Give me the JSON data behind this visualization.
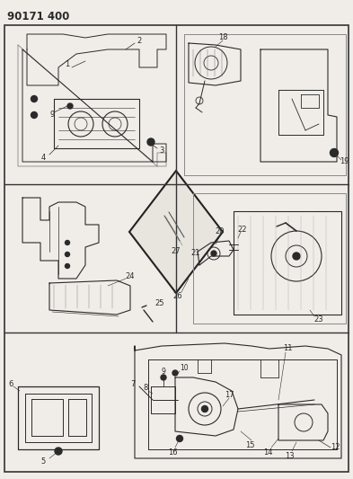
{
  "title": "90171 400",
  "bg_color": "#f5f5f0",
  "line_color": "#2a2a2a",
  "title_fontsize": 8.5,
  "label_fontsize": 6,
  "fig_width": 3.93,
  "fig_height": 5.33,
  "dpi": 100
}
